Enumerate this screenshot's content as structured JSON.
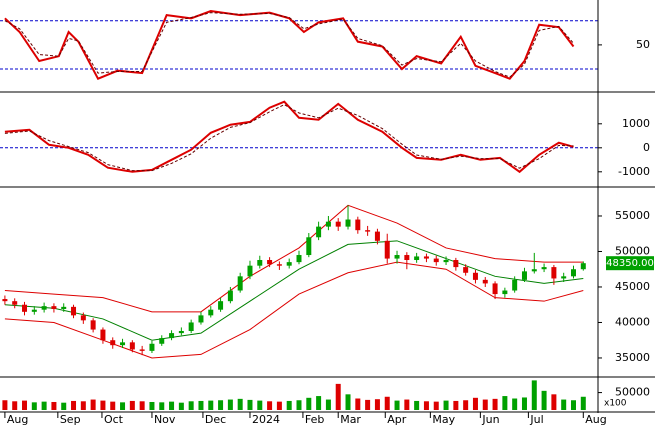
{
  "chart_data": [
    {
      "type": "line",
      "xlim": [
        -0.5,
        60.5
      ],
      "ylim": [
        -6,
        102
      ],
      "yticks": [
        50
      ],
      "levels": [
        80,
        20
      ],
      "level_color": "#0000cc",
      "x": [
        0,
        1.5,
        3.5,
        5.5,
        6.5,
        7.5,
        9.5,
        11.5,
        14,
        16.5,
        19,
        21,
        24,
        27,
        29,
        30.5,
        32,
        34.5,
        36,
        38.5,
        40.5,
        42,
        44.5,
        46.5,
        48,
        50,
        51.5,
        53,
        54.5,
        56.5,
        58
      ],
      "series": [
        {
          "color": "#dd0000",
          "dashed": false,
          "values": [
            83,
            66,
            30,
            36,
            66,
            54,
            8,
            18,
            15,
            87,
            83,
            92,
            87,
            90,
            83,
            66,
            78,
            83,
            54,
            48,
            20,
            36,
            27,
            60,
            24,
            15,
            8,
            30,
            75,
            72,
            48
          ]
        },
        {
          "color": "#660000",
          "dashed": true,
          "values": [
            80,
            70,
            38,
            36,
            58,
            55,
            15,
            17,
            17,
            78,
            84,
            90,
            88,
            89,
            84,
            70,
            76,
            82,
            58,
            49,
            25,
            33,
            29,
            52,
            30,
            17,
            10,
            26,
            68,
            73,
            52
          ]
        }
      ]
    },
    {
      "type": "line",
      "xlim": [
        -0.5,
        60.5
      ],
      "ylim": [
        -1550,
        2200
      ],
      "yticks": [
        1000,
        0,
        -1000
      ],
      "levels": [
        0
      ],
      "level_color": "#0000cc",
      "x": [
        0,
        2.5,
        4.5,
        6.5,
        8.5,
        10.5,
        13,
        15,
        17,
        19,
        21,
        23,
        25,
        27,
        28.5,
        30,
        32,
        34,
        36,
        38.5,
        40.5,
        42,
        44.5,
        46.5,
        48.5,
        50.5,
        52.5,
        54.5,
        56.5,
        58
      ],
      "series": [
        {
          "color": "#dd0000",
          "dashed": false,
          "values": [
            670,
            750,
            125,
            0,
            -290,
            -830,
            -1000,
            -920,
            -500,
            -80,
            625,
            960,
            1080,
            1670,
            1920,
            1250,
            1170,
            1830,
            1170,
            670,
            0,
            -420,
            -500,
            -290,
            -500,
            -420,
            -1000,
            -290,
            210,
            40
          ]
        },
        {
          "color": "#660000",
          "dashed": true,
          "values": [
            600,
            700,
            300,
            50,
            -200,
            -700,
            -950,
            -950,
            -650,
            -250,
            400,
            850,
            1050,
            1500,
            1800,
            1450,
            1250,
            1650,
            1350,
            800,
            150,
            -300,
            -480,
            -350,
            -450,
            -450,
            -850,
            -450,
            100,
            80
          ]
        }
      ]
    },
    {
      "type": "candlestick",
      "xlim": [
        -0.5,
        60.5
      ],
      "ylim": [
        32600,
        58660
      ],
      "yticks": [
        55000,
        50000,
        45000,
        40000,
        35000
      ],
      "up_color": "#00a000",
      "down_color": "#dd0000",
      "last_price": {
        "value": 48350,
        "label": "48350.00"
      },
      "open": [
        43300,
        43000,
        42500,
        41500,
        41800,
        42300,
        41900,
        42200,
        41000,
        40300,
        39000,
        37500,
        36800,
        37200,
        36200,
        36000,
        37000,
        37800,
        38500,
        38800,
        40000,
        41000,
        41800,
        43000,
        44500,
        46500,
        48000,
        48800,
        48200,
        48000,
        48500,
        49500,
        52000,
        53500,
        54200,
        53500,
        54500,
        53000,
        52800,
        51500,
        49000,
        49500,
        48800,
        49300,
        49000,
        48500,
        48800,
        47800,
        47000,
        46000,
        45500,
        44000,
        44500,
        46000,
        47200,
        47500,
        47800,
        46200,
        46500,
        47500
      ],
      "high": [
        43800,
        43400,
        42900,
        42300,
        42800,
        42700,
        42700,
        42500,
        41400,
        40600,
        39300,
        37900,
        37700,
        37500,
        36700,
        37400,
        38200,
        38900,
        39300,
        40400,
        41500,
        42300,
        43500,
        45000,
        47000,
        48700,
        49400,
        49200,
        48600,
        49000,
        50100,
        52600,
        54200,
        55000,
        54700,
        56500,
        54900,
        53600,
        53200,
        52500,
        50100,
        49900,
        49800,
        49700,
        49400,
        49300,
        49100,
        48200,
        47400,
        46400,
        45800,
        44900,
        46500,
        47700,
        49800,
        48300,
        48100,
        47000,
        48000,
        48600
      ],
      "low": [
        42500,
        42000,
        41000,
        41100,
        41400,
        41400,
        41500,
        40600,
        39800,
        38600,
        37000,
        36300,
        36400,
        35800,
        35400,
        35700,
        36700,
        37500,
        38200,
        38500,
        39700,
        40700,
        41500,
        42700,
        44200,
        46100,
        47600,
        47800,
        47400,
        47600,
        48200,
        49200,
        51600,
        53000,
        52900,
        53100,
        52500,
        52200,
        51000,
        48300,
        48300,
        47500,
        48400,
        48500,
        48000,
        48100,
        47300,
        46600,
        45500,
        45000,
        43300,
        43500,
        44200,
        45700,
        46900,
        47100,
        45300,
        45700,
        46200,
        47300
      ],
      "close": [
        43000,
        42500,
        41500,
        41800,
        42300,
        41900,
        42200,
        41000,
        40300,
        39000,
        37500,
        36800,
        37200,
        36200,
        36000,
        37000,
        37800,
        38500,
        38800,
        40000,
        41000,
        41800,
        43000,
        44500,
        46500,
        48000,
        48800,
        48200,
        48000,
        48500,
        49500,
        52000,
        53500,
        54200,
        53500,
        54500,
        53000,
        52800,
        51500,
        49000,
        49500,
        48800,
        49300,
        49000,
        48500,
        48800,
        47800,
        47000,
        46000,
        45500,
        44000,
        44500,
        46000,
        47200,
        47500,
        47800,
        46200,
        46500,
        47500,
        48350
      ],
      "bands_x": [
        0,
        5,
        10,
        15,
        20,
        25,
        30,
        35,
        40,
        45,
        50,
        55,
        59
      ],
      "bands": [
        {
          "color": "#dd0000",
          "values": [
            44500,
            44000,
            43500,
            41500,
            41500,
            46500,
            50500,
            56500,
            54000,
            50500,
            49000,
            48500,
            48500
          ]
        },
        {
          "color": "#008000",
          "values": [
            42500,
            42000,
            40500,
            37500,
            38500,
            43000,
            47500,
            51000,
            51500,
            49000,
            46500,
            45500,
            46200
          ]
        },
        {
          "color": "#dd0000",
          "values": [
            40500,
            40000,
            37500,
            35000,
            35500,
            39000,
            44000,
            47000,
            48500,
            47500,
            43500,
            43000,
            44500
          ]
        }
      ]
    },
    {
      "type": "bar",
      "xlim": [
        -0.5,
        60.5
      ],
      "ylim": [
        0,
        89000
      ],
      "yticks": [
        50000
      ],
      "unit": "x100",
      "values": [
        28000,
        25000,
        27000,
        22000,
        24000,
        23000,
        21000,
        26000,
        25000,
        30000,
        27000,
        24000,
        22000,
        26000,
        25000,
        23000,
        22000,
        24000,
        21000,
        25000,
        26000,
        27000,
        28000,
        30000,
        32000,
        29000,
        27000,
        25000,
        24000,
        26000,
        28000,
        35000,
        40000,
        30000,
        75000,
        45000,
        33000,
        29000,
        31000,
        38000,
        27000,
        30000,
        26000,
        25000,
        24000,
        27000,
        26000,
        28000,
        35000,
        30000,
        32000,
        40000,
        33000,
        36000,
        85000,
        55000,
        45000,
        30000,
        28000,
        38000
      ],
      "xticks": [
        {
          "value": 0,
          "label": "Aug"
        },
        {
          "value": 5.4,
          "label": "Sep"
        },
        {
          "value": 9.9,
          "label": "Oct"
        },
        {
          "value": 15,
          "label": "Nov"
        },
        {
          "value": 20.2,
          "label": "Dec"
        },
        {
          "value": 25,
          "label": "2024"
        },
        {
          "value": 30.4,
          "label": "Feb"
        },
        {
          "value": 34,
          "label": "Mar"
        },
        {
          "value": 38.8,
          "label": "Apr"
        },
        {
          "value": 43.4,
          "label": "May"
        },
        {
          "value": 48.5,
          "label": "Jun"
        },
        {
          "value": 53.4,
          "label": "Jul"
        },
        {
          "value": 59,
          "label": "Aug"
        }
      ]
    }
  ]
}
